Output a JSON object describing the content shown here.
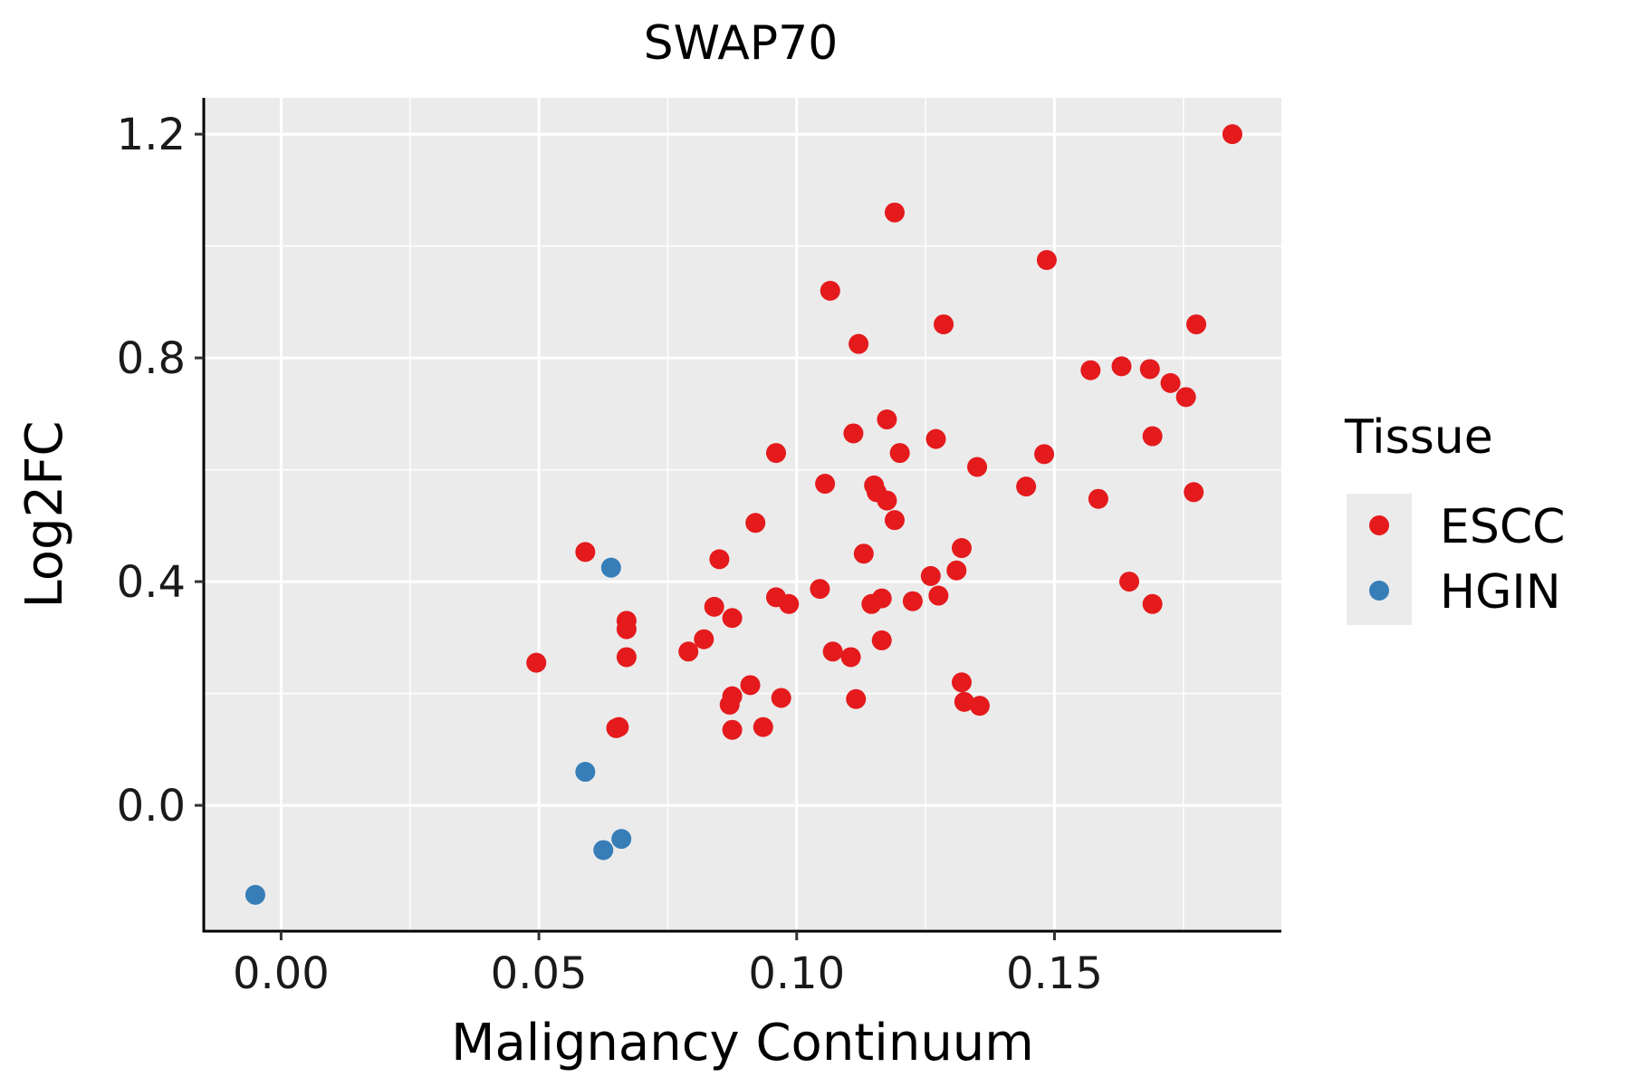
{
  "chart_data": {
    "type": "scatter",
    "title": "SWAP70",
    "xlabel": "Malignancy Continuum",
    "ylabel": "Log2FC",
    "xlim": [
      -0.015,
      0.194
    ],
    "ylim": [
      -0.225,
      1.265
    ],
    "x_ticks": [
      0.0,
      0.05,
      0.1,
      0.15
    ],
    "x_tick_labels": [
      "0.00",
      "0.05",
      "0.10",
      "0.15"
    ],
    "y_ticks": [
      0.0,
      0.4,
      0.8,
      1.2
    ],
    "y_tick_labels": [
      "0.0",
      "0.4",
      "0.8",
      "1.2"
    ],
    "x_minor_ticks": [
      0.025,
      0.075,
      0.125,
      0.175
    ],
    "y_minor_ticks": [
      0.2,
      0.6,
      1.0
    ],
    "grid": true,
    "legend": {
      "title": "Tissue",
      "position": "right"
    },
    "series": [
      {
        "name": "ESCC",
        "color": "#e41a1c",
        "points": [
          [
            0.0495,
            0.255
          ],
          [
            0.059,
            0.453
          ],
          [
            0.0655,
            0.14
          ],
          [
            0.065,
            0.138
          ],
          [
            0.067,
            0.33
          ],
          [
            0.067,
            0.315
          ],
          [
            0.067,
            0.265
          ],
          [
            0.079,
            0.275
          ],
          [
            0.082,
            0.297
          ],
          [
            0.084,
            0.355
          ],
          [
            0.085,
            0.44
          ],
          [
            0.087,
            0.18
          ],
          [
            0.0875,
            0.195
          ],
          [
            0.0875,
            0.335
          ],
          [
            0.0875,
            0.135
          ],
          [
            0.091,
            0.215
          ],
          [
            0.092,
            0.505
          ],
          [
            0.0935,
            0.14
          ],
          [
            0.096,
            0.63
          ],
          [
            0.096,
            0.372
          ],
          [
            0.097,
            0.192
          ],
          [
            0.0985,
            0.36
          ],
          [
            0.1045,
            0.387
          ],
          [
            0.1055,
            0.575
          ],
          [
            0.1065,
            0.92
          ],
          [
            0.107,
            0.275
          ],
          [
            0.1105,
            0.265
          ],
          [
            0.111,
            0.665
          ],
          [
            0.1115,
            0.19
          ],
          [
            0.112,
            0.825
          ],
          [
            0.113,
            0.45
          ],
          [
            0.1145,
            0.36
          ],
          [
            0.115,
            0.572
          ],
          [
            0.1155,
            0.56
          ],
          [
            0.1165,
            0.37
          ],
          [
            0.1165,
            0.295
          ],
          [
            0.1175,
            0.69
          ],
          [
            0.1175,
            0.545
          ],
          [
            0.119,
            1.06
          ],
          [
            0.119,
            0.51
          ],
          [
            0.12,
            0.63
          ],
          [
            0.1225,
            0.365
          ],
          [
            0.126,
            0.41
          ],
          [
            0.127,
            0.655
          ],
          [
            0.1275,
            0.375
          ],
          [
            0.1285,
            0.86
          ],
          [
            0.131,
            0.42
          ],
          [
            0.132,
            0.46
          ],
          [
            0.132,
            0.22
          ],
          [
            0.1325,
            0.185
          ],
          [
            0.135,
            0.605
          ],
          [
            0.1355,
            0.178
          ],
          [
            0.1445,
            0.57
          ],
          [
            0.148,
            0.628
          ],
          [
            0.1485,
            0.975
          ],
          [
            0.157,
            0.778
          ],
          [
            0.1585,
            0.548
          ],
          [
            0.163,
            0.785
          ],
          [
            0.1645,
            0.4
          ],
          [
            0.1685,
            0.78
          ],
          [
            0.169,
            0.66
          ],
          [
            0.169,
            0.36
          ],
          [
            0.1725,
            0.755
          ],
          [
            0.1755,
            0.73
          ],
          [
            0.177,
            0.56
          ],
          [
            0.1775,
            0.86
          ],
          [
            0.1845,
            1.2
          ]
        ]
      },
      {
        "name": "HGIN",
        "color": "#377eb8",
        "points": [
          [
            -0.005,
            -0.16
          ],
          [
            0.059,
            0.06
          ],
          [
            0.0625,
            -0.08
          ],
          [
            0.064,
            0.425
          ],
          [
            0.066,
            -0.06
          ]
        ]
      }
    ]
  }
}
